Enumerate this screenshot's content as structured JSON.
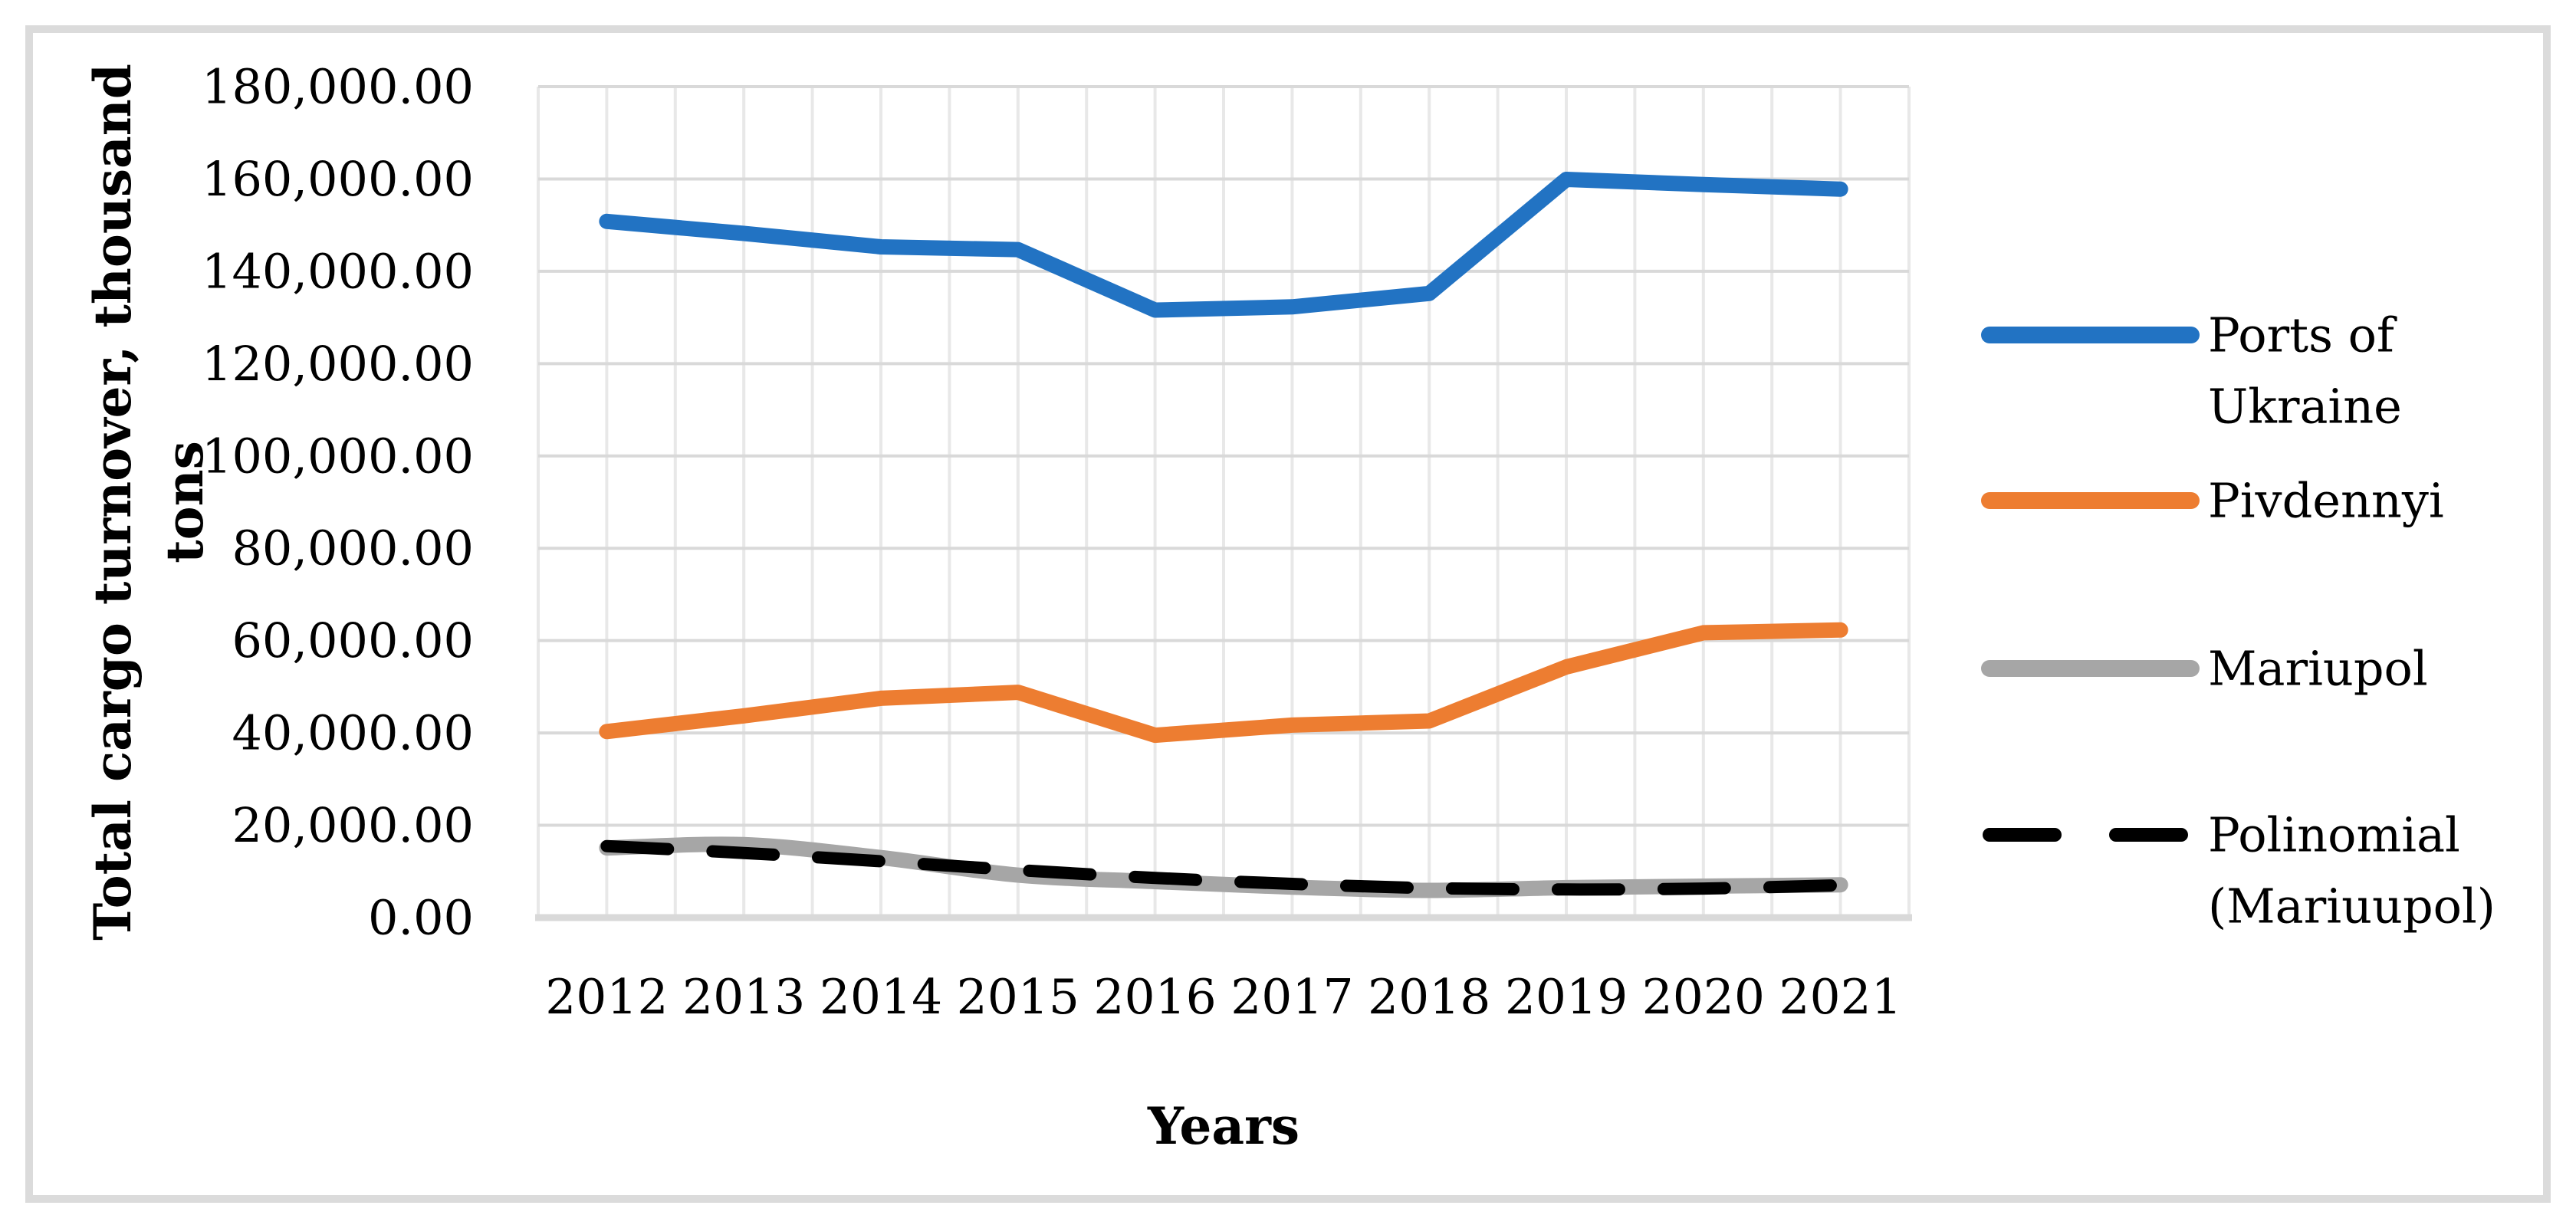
{
  "figure": {
    "background": "#FFFFFF",
    "border_color": "#DBDBDB",
    "plot_border_and_axis_color": "#D9D9D9",
    "minor_grid_color": "#E8E8E8"
  },
  "chart_data": {
    "type": "line",
    "title": "",
    "xlabel": "Years",
    "ylabel": "Total cargo turnover, thousand tons",
    "ylabel_lines": [
      "Total cargo turnover, thousand",
      "tons"
    ],
    "categories": [
      "2012",
      "2013",
      "2014",
      "2015",
      "2016",
      "2017",
      "2018",
      "2019",
      "2020",
      "2021"
    ],
    "y_axis": {
      "min": 0,
      "max": 180000,
      "step": 20000,
      "tick_values": [
        0,
        20000,
        40000,
        60000,
        80000,
        100000,
        120000,
        140000,
        160000,
        180000
      ],
      "tick_labels": [
        "0.00",
        "20,000.00",
        "40,000.00",
        "60,000.00",
        "80,000.00",
        "100,000.00",
        "120,000.00",
        "140,000.00",
        "160,000.00",
        "180,000.00"
      ]
    },
    "grid": {
      "horizontal": true,
      "vertical": true
    },
    "legend_position": "right",
    "series": [
      {
        "name": "Ports of Ukraine",
        "legend_lines": [
          "Ports of",
          "Ukraine"
        ],
        "color": "#2273C3",
        "style": "solid",
        "smooth": false,
        "values": [
          150800,
          148200,
          145300,
          144700,
          131600,
          132300,
          135200,
          159900,
          158800,
          157800
        ]
      },
      {
        "name": "Pivdennyi",
        "legend_lines": [
          "Pivdennyi"
        ],
        "color": "#ED7D31",
        "style": "solid",
        "smooth": false,
        "values": [
          40300,
          43700,
          47500,
          48800,
          39500,
          41700,
          42600,
          54300,
          61700,
          62300
        ]
      },
      {
        "name": "Mariupol",
        "legend_lines": [
          "Mariupol"
        ],
        "color": "#A6A6A6",
        "style": "solid",
        "smooth": true,
        "values": [
          15100,
          15800,
          13000,
          9200,
          7800,
          6600,
          5900,
          6500,
          6800,
          7100
        ]
      },
      {
        "name": "Polinomial (Mariuupol)",
        "legend_lines": [
          "Polinomial",
          "(Mariuupol)"
        ],
        "color": "#000000",
        "style": "dashed",
        "smooth": true,
        "values": [
          15500,
          14000,
          12200,
          10300,
          8600,
          7300,
          6400,
          6100,
          6300,
          7000
        ]
      }
    ]
  }
}
